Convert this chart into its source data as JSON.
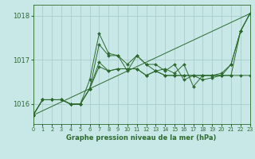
{
  "title": "Graphe pression niveau de la mer (hPa)",
  "background_color": "#c8e8e8",
  "grid_color": "#aacccc",
  "line_color": "#2d6a2d",
  "ylim": [
    1015.55,
    1018.25
  ],
  "xlim": [
    0,
    23
  ],
  "yticks": [
    1016,
    1017,
    1018
  ],
  "xticks": [
    0,
    1,
    2,
    3,
    4,
    5,
    6,
    7,
    8,
    9,
    10,
    11,
    12,
    13,
    14,
    15,
    16,
    17,
    18,
    19,
    20,
    21,
    22,
    23
  ],
  "x_tick_labels": [
    "0",
    "1",
    "2",
    "3",
    "4",
    "5",
    "6",
    "7",
    "8",
    "9",
    "10",
    "11",
    "12",
    "13",
    "14",
    "15",
    "16",
    "17",
    "18",
    "19",
    "20",
    "21",
    "22",
    "23"
  ],
  "diagonal_line": [
    [
      0,
      23
    ],
    [
      1015.75,
      1018.05
    ]
  ],
  "series": [
    [
      1015.75,
      1016.1,
      1016.1,
      1016.1,
      1016.0,
      1016.0,
      1016.35,
      1016.85,
      1016.75,
      1016.8,
      1016.8,
      1016.8,
      1016.65,
      1016.75,
      1016.65,
      1016.65,
      1016.65,
      1016.65,
      1016.65,
      1016.65,
      1016.65,
      1016.65,
      1016.65,
      1016.65
    ],
    [
      1015.75,
      1016.1,
      1016.1,
      1016.1,
      1016.0,
      1016.0,
      1016.35,
      1017.35,
      1017.1,
      1017.1,
      1016.9,
      1017.1,
      1016.9,
      1016.9,
      1016.75,
      1016.9,
      1016.55,
      1016.65,
      1016.55,
      1016.6,
      1016.65,
      1016.9,
      1017.65,
      1018.05
    ],
    [
      1015.75,
      1016.1,
      1016.1,
      1016.1,
      1016.0,
      1016.0,
      1016.35,
      1016.95,
      1016.75,
      1016.8,
      1016.8,
      1016.8,
      1016.65,
      1016.75,
      1016.65,
      1016.65,
      1016.65,
      1016.65,
      1016.65,
      1016.65,
      1016.65,
      1016.65,
      1017.65,
      1018.05
    ],
    [
      1015.75,
      1016.1,
      1016.1,
      1016.1,
      1016.0,
      1016.0,
      1016.55,
      1017.6,
      1017.15,
      1017.1,
      1016.75,
      1017.1,
      1016.9,
      1016.75,
      1016.8,
      1016.7,
      1016.9,
      1016.4,
      1016.65,
      1016.65,
      1016.7,
      1016.9,
      1017.65,
      1018.05
    ]
  ]
}
